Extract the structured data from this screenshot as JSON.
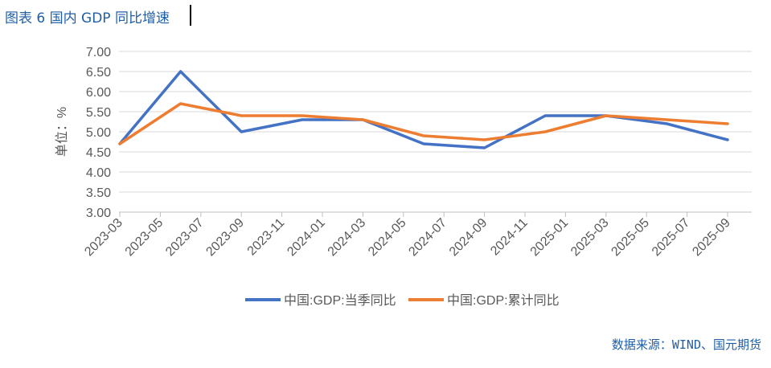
{
  "figure": {
    "title": "图表 6 国内 GDP 同比增速",
    "source": "数据来源：WIND、国元期货"
  },
  "chart_data": {
    "type": "line",
    "ylabel": "单位：%",
    "ylim": [
      3.0,
      7.0
    ],
    "yticks": [
      "7.00",
      "6.50",
      "6.00",
      "5.50",
      "5.00",
      "4.50",
      "4.00",
      "3.50",
      "3.00"
    ],
    "xticks": [
      "2023-03",
      "2023-05",
      "2023-07",
      "2023-09",
      "2023-11",
      "2024-01",
      "2024-03",
      "2024-05",
      "2024-07",
      "2024-09",
      "2024-11",
      "2025-01",
      "2025-03",
      "2025-05",
      "2025-07",
      "2025-09"
    ],
    "x": [
      "2023-03",
      "2023-06",
      "2023-09",
      "2023-12",
      "2024-03",
      "2024-06",
      "2024-09",
      "2024-12",
      "2025-03",
      "2025-06",
      "2025-09"
    ],
    "series": [
      {
        "name": "中国:GDP:当季同比",
        "color": "#4472c4",
        "values": [
          4.7,
          6.5,
          5.0,
          5.3,
          5.3,
          4.7,
          4.6,
          5.4,
          5.4,
          5.2,
          4.8
        ]
      },
      {
        "name": "中国:GDP:累计同比",
        "color": "#ed7d31",
        "values": [
          4.7,
          5.7,
          5.4,
          5.4,
          5.3,
          4.9,
          4.8,
          5.0,
          5.4,
          5.3,
          5.2
        ]
      }
    ],
    "grid": true,
    "legend": "bottom"
  }
}
